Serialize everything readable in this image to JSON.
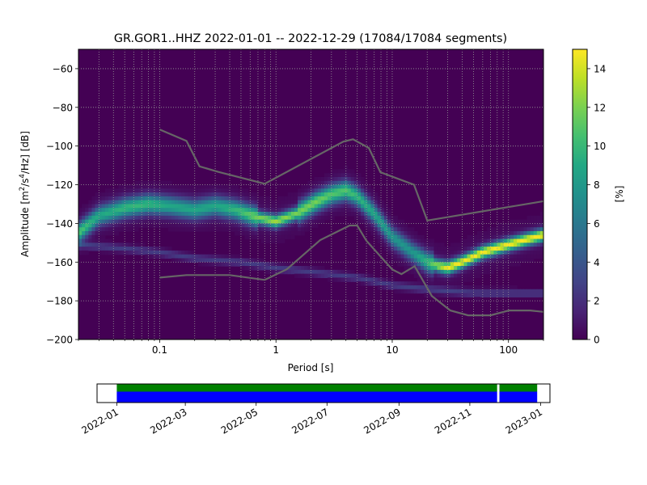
{
  "title": "GR.GOR1..HHZ   2022-01-01 -- 2022-12-29  (17084/17084 segments)",
  "chart_data": [
    {
      "type": "heatmap",
      "name": "psd",
      "xlabel": "Period [s]",
      "ylabel_main": "Amplitude [m",
      "ylabel_sup1": "2",
      "ylabel_mid": "/s",
      "ylabel_sup2": "4",
      "ylabel_end": "/Hz] [dB]",
      "x_scale": "log",
      "xlim": [
        0.02,
        200
      ],
      "ylim": [
        -200,
        -50
      ],
      "x_ticks": [
        0.1,
        1,
        10,
        100
      ],
      "x_tick_labels": [
        "0.1",
        "1",
        "10",
        "100"
      ],
      "y_ticks": [
        -60,
        -80,
        -100,
        -120,
        -140,
        -160,
        -180,
        -200
      ],
      "y_tick_labels": [
        "−60",
        "−80",
        "−100",
        "−120",
        "−140",
        "−160",
        "−180",
        "−200"
      ],
      "grid": true,
      "colormap": "viridis",
      "colorbar": {
        "label": "[%]",
        "range": [
          0,
          15
        ],
        "ticks": [
          0,
          2,
          4,
          6,
          8,
          10,
          12,
          14
        ],
        "tick_labels": [
          "0",
          "2",
          "4",
          "6",
          "8",
          "10",
          "12",
          "14"
        ]
      },
      "mode_curve": [
        {
          "x": 0.02,
          "y": -145,
          "p": 10
        },
        {
          "x": 0.03,
          "y": -136,
          "p": 8
        },
        {
          "x": 0.05,
          "y": -132,
          "p": 9
        },
        {
          "x": 0.08,
          "y": -130,
          "p": 9
        },
        {
          "x": 0.12,
          "y": -131,
          "p": 8
        },
        {
          "x": 0.2,
          "y": -133,
          "p": 8
        },
        {
          "x": 0.3,
          "y": -131,
          "p": 8
        },
        {
          "x": 0.45,
          "y": -133,
          "p": 9
        },
        {
          "x": 0.7,
          "y": -137,
          "p": 11
        },
        {
          "x": 1.0,
          "y": -139,
          "p": 12
        },
        {
          "x": 1.5,
          "y": -135,
          "p": 11
        },
        {
          "x": 2.2,
          "y": -129,
          "p": 11
        },
        {
          "x": 3.0,
          "y": -125,
          "p": 10
        },
        {
          "x": 4.0,
          "y": -123,
          "p": 10
        },
        {
          "x": 5.0,
          "y": -126,
          "p": 9
        },
        {
          "x": 7.0,
          "y": -135,
          "p": 8
        },
        {
          "x": 10.0,
          "y": -147,
          "p": 7
        },
        {
          "x": 15.0,
          "y": -155,
          "p": 7
        },
        {
          "x": 20.0,
          "y": -160,
          "p": 9
        },
        {
          "x": 25.0,
          "y": -162,
          "p": 12
        },
        {
          "x": 30.0,
          "y": -163,
          "p": 14
        },
        {
          "x": 40.0,
          "y": -160,
          "p": 14
        },
        {
          "x": 60.0,
          "y": -155,
          "p": 14
        },
        {
          "x": 100.0,
          "y": -151,
          "p": 14
        },
        {
          "x": 150.0,
          "y": -148,
          "p": 14
        },
        {
          "x": 200.0,
          "y": -146,
          "p": 14
        }
      ],
      "low_branch": [
        {
          "x": 0.02,
          "y": -151
        },
        {
          "x": 0.05,
          "y": -153
        },
        {
          "x": 0.1,
          "y": -155
        },
        {
          "x": 0.2,
          "y": -158
        },
        {
          "x": 0.5,
          "y": -160
        },
        {
          "x": 1.0,
          "y": -163
        },
        {
          "x": 2.0,
          "y": -165
        },
        {
          "x": 5.0,
          "y": -168
        },
        {
          "x": 10.0,
          "y": -172
        },
        {
          "x": 20.0,
          "y": -174
        },
        {
          "x": 50.0,
          "y": -176
        },
        {
          "x": 200.0,
          "y": -176
        }
      ],
      "nhnm": {
        "name": "NHNM",
        "x": [
          0.1,
          0.17,
          0.22,
          0.32,
          0.8,
          3.8,
          4.6,
          6.3,
          7.9,
          15.4,
          20.0,
          200.0
        ],
        "y": [
          -91.5,
          -97.4,
          -110.5,
          -113.4,
          -119.5,
          -97.7,
          -96.5,
          -101.0,
          -113.5,
          -120.0,
          -138.5,
          -128.5
        ]
      },
      "nlnm": {
        "name": "NLNM",
        "x": [
          0.1,
          0.17,
          0.4,
          0.8,
          1.24,
          2.4,
          4.3,
          5.0,
          6.0,
          10.0,
          12.0,
          15.6,
          21.9,
          31.6,
          45.0,
          70.0,
          101.0,
          154.0,
          200.0
        ],
        "y": [
          -168.0,
          -166.7,
          -166.7,
          -169.2,
          -163.7,
          -148.6,
          -141.1,
          -141.1,
          -149.0,
          -163.8,
          -166.2,
          -162.1,
          -177.5,
          -185.0,
          -187.5,
          -187.5,
          -185.0,
          -185.0,
          -185.7
        ]
      }
    },
    {
      "type": "timeline",
      "name": "data-coverage",
      "x_tick_labels": [
        "2022-01",
        "2022-03",
        "2022-05",
        "2022-07",
        "2022-09",
        "2022-11",
        "2023-01"
      ],
      "x_tick_days": [
        0,
        59,
        120,
        181,
        243,
        304,
        365
      ],
      "xlim_days": [
        -17,
        373
      ],
      "data_color": "#0000ff",
      "processed_color": "#008000",
      "coverage": [
        [
          0,
          327.5
        ],
        [
          329.5,
          362
        ]
      ]
    }
  ]
}
